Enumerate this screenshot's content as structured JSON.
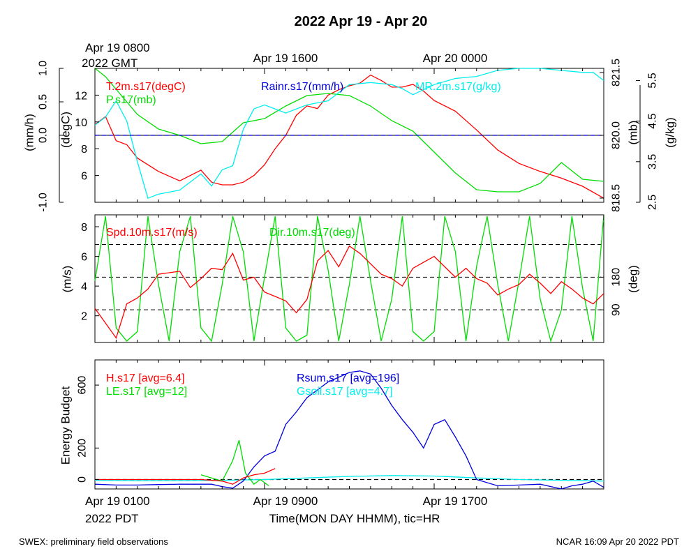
{
  "title": "2022 Apr 19 - Apr 20",
  "gmt": {
    "start_line1": "Apr 19 0800",
    "start_line2": "2022 GMT",
    "tick2": "Apr 19 1600",
    "tick3": "Apr 20 0000"
  },
  "local": {
    "tick1": "Apr 19 0100",
    "tick2": "Apr 19 0900",
    "tick3": "Apr 19 1700",
    "year_tz": "2022 PDT"
  },
  "xlabel": "Time(MON DAY HHMM), tic=HR",
  "footer": {
    "left": "SWEX: preliminary field observations",
    "right": "NCAR 16:09 Apr 20 2022 PDT"
  },
  "colors": {
    "red": "#ff0000",
    "green": "#00dd00",
    "blue": "#0000dd",
    "cyan": "#00eeee",
    "black": "#000000"
  },
  "chart_data": [
    {
      "type": "line",
      "panel": "top",
      "x_unit": "hours since Apr 19 0100 PDT",
      "xlim": [
        0,
        24
      ],
      "axes": {
        "left_outer": {
          "label": "(mm/h)",
          "ylim": [
            -1.0,
            1.0
          ],
          "ticks": [
            "-1.0",
            "0.0",
            "0.5",
            "1.0"
          ]
        },
        "left_inner": {
          "label": "(degC)",
          "ylim": [
            4,
            14
          ],
          "ticks": [
            "6",
            "8",
            "10",
            "12"
          ]
        },
        "right_inner": {
          "label": "(mb)",
          "ylim": [
            818.4,
            821.6
          ],
          "ticks": [
            "818.5",
            "820.0",
            "821.5"
          ]
        },
        "right_outer": {
          "label": "(g/kg)",
          "ylim": [
            2.5,
            5.8
          ],
          "ticks": [
            "2.5",
            "3.5",
            "4.5",
            "5.5"
          ]
        }
      },
      "series": [
        {
          "name": "T.2m.s17(degC)",
          "color": "red",
          "axis": "left_inner",
          "x": [
            0,
            0.5,
            1,
            1.5,
            2,
            3,
            4,
            5,
            5.5,
            6,
            6.5,
            7,
            7.5,
            8,
            8.5,
            9,
            9.5,
            10,
            10.5,
            11,
            11.5,
            12,
            12.5,
            13,
            13.5,
            14,
            14.5,
            15,
            15.5,
            16,
            17,
            18,
            19,
            20,
            21,
            22,
            23,
            24
          ],
          "values": [
            9.8,
            10.4,
            8.6,
            8.3,
            7.3,
            6.3,
            5.6,
            6.4,
            5.5,
            5.3,
            5.3,
            5.5,
            6.0,
            6.8,
            8.0,
            9.0,
            10.5,
            11.2,
            11.0,
            12.0,
            12.4,
            12.7,
            12.9,
            13.5,
            13.1,
            12.6,
            12.6,
            12.8,
            12.3,
            11.6,
            10.8,
            9.4,
            7.9,
            6.9,
            6.3,
            5.8,
            5.2,
            4.3
          ]
        },
        {
          "name": "P.s17(mb)",
          "color": "green",
          "axis": "right_inner",
          "x": [
            0,
            0.5,
            1,
            1.5,
            2,
            3,
            4,
            5,
            6,
            7,
            8,
            9,
            10,
            11,
            12,
            13,
            14,
            15,
            16,
            17,
            18,
            19,
            20,
            21,
            22,
            23,
            24
          ],
          "values": [
            821.6,
            821.4,
            821.1,
            820.8,
            820.5,
            820.15,
            820.0,
            819.8,
            819.85,
            820.3,
            820.4,
            820.7,
            820.95,
            821.0,
            820.95,
            820.7,
            820.35,
            820.1,
            819.6,
            819.1,
            818.7,
            818.65,
            818.65,
            818.85,
            819.35,
            818.95,
            818.9
          ]
        },
        {
          "name": "Rainr.s17(mm/h)",
          "color": "blue",
          "axis": "left_outer",
          "x": [
            0,
            24
          ],
          "values": [
            0,
            0
          ]
        },
        {
          "name": "MR.2m.s17(g/kg)",
          "color": "cyan",
          "axis": "right_outer",
          "x": [
            0,
            0.5,
            1,
            1.5,
            2,
            2.5,
            3,
            4,
            5,
            5.5,
            6,
            6.5,
            7,
            7.5,
            8,
            9,
            10,
            11,
            12,
            13,
            14,
            14.5,
            15,
            16,
            17,
            18,
            19,
            20,
            21,
            22,
            23,
            23.5,
            24
          ],
          "values": [
            4.4,
            4.6,
            5.0,
            4.5,
            3.5,
            2.6,
            2.7,
            2.8,
            3.2,
            2.9,
            3.3,
            3.4,
            4.3,
            4.8,
            4.9,
            4.7,
            4.9,
            5.0,
            5.4,
            5.45,
            5.4,
            5.3,
            5.15,
            5.4,
            5.55,
            5.6,
            5.75,
            5.8,
            5.8,
            5.75,
            5.7,
            5.7,
            5.5
          ]
        }
      ]
    },
    {
      "type": "line",
      "panel": "middle",
      "x_unit": "hours since Apr 19 0100 PDT",
      "xlim": [
        0,
        24
      ],
      "axes": {
        "left": {
          "label": "(m/s)",
          "ylim": [
            0.2,
            8.8
          ],
          "ticks": [
            "2",
            "4",
            "6",
            "8"
          ]
        },
        "right": {
          "label": "(deg)",
          "ticks": [
            "90",
            "180"
          ]
        }
      },
      "reference_lines_ms": [
        2.4,
        4.6,
        6.8
      ],
      "series": [
        {
          "name": "Spd.10m.s17(m/s)",
          "color": "red",
          "axis": "left",
          "x": [
            0,
            0.5,
            1,
            1.5,
            2,
            2.5,
            3,
            3.5,
            4,
            4.5,
            5,
            5.5,
            6,
            6.5,
            7,
            7.5,
            8,
            8.5,
            9,
            9.5,
            10,
            10.5,
            11,
            11.5,
            12,
            12.5,
            13,
            13.5,
            14,
            14.5,
            15,
            15.5,
            16,
            16.5,
            17,
            17.5,
            18,
            18.5,
            19,
            19.5,
            20,
            20.5,
            21,
            21.5,
            22,
            22.5,
            23,
            23.5,
            24
          ],
          "values": [
            2.5,
            1.5,
            0.5,
            2.8,
            3.2,
            3.8,
            4.8,
            4.9,
            5.0,
            3.9,
            4.5,
            5.2,
            5.1,
            6.2,
            4.4,
            4.6,
            3.6,
            3.3,
            3.0,
            2.2,
            3.1,
            5.7,
            6.4,
            5.3,
            6.7,
            6.2,
            5.5,
            4.8,
            4.5,
            4.0,
            5.2,
            5.6,
            6.0,
            5.3,
            4.6,
            5.2,
            4.5,
            4.2,
            3.4,
            3.8,
            4.1,
            4.8,
            4.2,
            3.5,
            4.3,
            3.8,
            3.2,
            2.8,
            3.5
          ]
        },
        {
          "name": "Dir.10m.s17(deg)",
          "color": "green",
          "axis": "right",
          "x": [
            0,
            1,
            2,
            3,
            4,
            5,
            6,
            7,
            8,
            9,
            10,
            11,
            12,
            13,
            14,
            15,
            16,
            17,
            18,
            19,
            20,
            21,
            22,
            23,
            24
          ],
          "values": [
            170,
            40,
            30,
            160,
            250,
            40,
            160,
            250,
            180,
            40,
            20,
            200,
            160,
            170,
            120,
            30,
            30,
            250,
            210,
            160,
            170,
            120,
            90,
            150,
            360
          ]
        }
      ]
    },
    {
      "type": "line",
      "panel": "bottom",
      "x_unit": "hours since Apr 19 0100 PDT",
      "xlim": [
        0,
        24
      ],
      "ylabel": "Energy Budget",
      "ylim": [
        -60,
        760
      ],
      "yticks": [
        "0",
        "200",
        "600"
      ],
      "reference_line": 0,
      "series": [
        {
          "name": "H.s17 [avg=6.4]",
          "color": "red",
          "x": [
            0,
            1,
            2,
            3,
            4,
            5,
            6,
            6.5,
            7,
            7.5,
            8,
            8.5
          ],
          "values": [
            0,
            0,
            0,
            0,
            0,
            0,
            -10,
            -30,
            10,
            30,
            40,
            70
          ]
        },
        {
          "name": "LE.s17 [avg=12]",
          "color": "green",
          "x": [
            5,
            5.5,
            6,
            6.5,
            6.8,
            7.1,
            7.5,
            7.8,
            8.2
          ],
          "values": [
            30,
            10,
            -10,
            120,
            250,
            40,
            -30,
            0,
            -40
          ]
        },
        {
          "name": "Rsum.s17 [avg=196]",
          "color": "blue",
          "x": [
            0,
            1,
            2,
            3,
            4,
            5,
            5.5,
            6,
            6.5,
            7,
            7.5,
            8,
            8.5,
            9,
            9.5,
            10,
            11,
            12,
            12.5,
            13,
            13.5,
            14,
            14.5,
            15,
            15.5,
            16,
            16.5,
            17,
            17.5,
            18,
            19,
            20,
            21,
            22,
            22.5,
            23,
            23.5,
            24
          ],
          "values": [
            -30,
            -35,
            -35,
            -32,
            -30,
            -30,
            -30,
            -45,
            -55,
            -10,
            80,
            150,
            180,
            350,
            430,
            520,
            620,
            680,
            690,
            670,
            580,
            470,
            380,
            300,
            200,
            350,
            380,
            270,
            150,
            0,
            -40,
            -35,
            -30,
            -60,
            -40,
            -30,
            -10,
            -50
          ]
        },
        {
          "name": "Gsoil.s17 [avg=4.7]",
          "color": "cyan",
          "x": [
            0,
            2,
            4,
            6,
            8,
            10,
            12,
            14,
            16,
            18,
            20,
            22,
            24
          ],
          "values": [
            -5,
            -8,
            -8,
            -5,
            0,
            10,
            20,
            25,
            22,
            10,
            0,
            -5,
            -10
          ]
        }
      ]
    }
  ]
}
